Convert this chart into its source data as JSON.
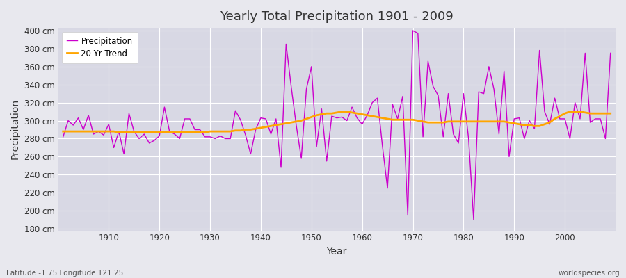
{
  "title": "Yearly Total Precipitation 1901 - 2009",
  "xlabel": "Year",
  "ylabel": "Precipitation",
  "footnote_left": "Latitude -1.75 Longitude 121.25",
  "footnote_right": "worldspecies.org",
  "legend_entries": [
    "Precipitation",
    "20 Yr Trend"
  ],
  "precip_color": "#cc00cc",
  "trend_color": "#ffa500",
  "fig_bg_color": "#e8e8ee",
  "plot_bg_color": "#d8d8e4",
  "ylim": [
    178,
    403
  ],
  "years": [
    1901,
    1902,
    1903,
    1904,
    1905,
    1906,
    1907,
    1908,
    1909,
    1910,
    1911,
    1912,
    1913,
    1914,
    1915,
    1916,
    1917,
    1918,
    1919,
    1920,
    1921,
    1922,
    1923,
    1924,
    1925,
    1926,
    1927,
    1928,
    1929,
    1930,
    1931,
    1932,
    1933,
    1934,
    1935,
    1936,
    1937,
    1938,
    1939,
    1940,
    1941,
    1942,
    1943,
    1944,
    1945,
    1946,
    1947,
    1948,
    1949,
    1950,
    1951,
    1952,
    1953,
    1954,
    1955,
    1956,
    1957,
    1958,
    1959,
    1960,
    1961,
    1962,
    1963,
    1964,
    1965,
    1966,
    1967,
    1968,
    1969,
    1970,
    1971,
    1972,
    1973,
    1974,
    1975,
    1976,
    1977,
    1978,
    1979,
    1980,
    1981,
    1982,
    1983,
    1984,
    1985,
    1986,
    1987,
    1988,
    1989,
    1990,
    1991,
    1992,
    1993,
    1994,
    1995,
    1996,
    1997,
    1998,
    1999,
    2000,
    2001,
    2002,
    2003,
    2004,
    2005,
    2006,
    2007,
    2008,
    2009
  ],
  "precip": [
    282,
    300,
    295,
    303,
    290,
    306,
    285,
    288,
    284,
    296,
    270,
    288,
    263,
    308,
    288,
    280,
    285,
    275,
    278,
    283,
    315,
    288,
    285,
    280,
    302,
    302,
    290,
    290,
    282,
    282,
    280,
    283,
    280,
    280,
    311,
    301,
    284,
    263,
    290,
    303,
    302,
    285,
    302,
    248,
    385,
    338,
    295,
    258,
    335,
    360,
    271,
    313,
    255,
    305,
    303,
    304,
    300,
    315,
    303,
    296,
    306,
    320,
    325,
    272,
    225,
    318,
    302,
    327,
    195,
    400,
    397,
    282,
    366,
    338,
    328,
    282,
    330,
    285,
    275,
    330,
    280,
    190,
    332,
    330,
    360,
    335,
    285,
    355,
    260,
    302,
    303,
    280,
    300,
    291,
    378,
    310,
    296,
    325,
    302,
    302,
    280,
    320,
    302,
    375,
    298,
    302,
    302,
    280,
    375
  ],
  "trend": [
    288,
    288,
    288,
    288,
    288,
    288,
    288,
    288,
    288,
    288,
    288,
    287,
    287,
    287,
    287,
    287,
    287,
    287,
    287,
    287,
    287,
    287,
    287,
    287,
    287,
    287,
    287,
    287,
    287,
    288,
    288,
    288,
    288,
    288,
    289,
    289,
    290,
    290,
    291,
    292,
    293,
    294,
    295,
    296,
    297,
    298,
    299,
    300,
    302,
    304,
    306,
    307,
    308,
    308,
    309,
    310,
    310,
    309,
    308,
    307,
    306,
    305,
    304,
    303,
    302,
    301,
    301,
    301,
    301,
    301,
    300,
    299,
    298,
    298,
    298,
    298,
    299,
    299,
    299,
    299,
    299,
    299,
    299,
    299,
    299,
    299,
    299,
    299,
    298,
    297,
    296,
    295,
    295,
    294,
    294,
    296,
    298,
    302,
    305,
    308,
    310,
    310,
    310,
    309,
    308,
    308,
    308,
    308,
    308
  ]
}
